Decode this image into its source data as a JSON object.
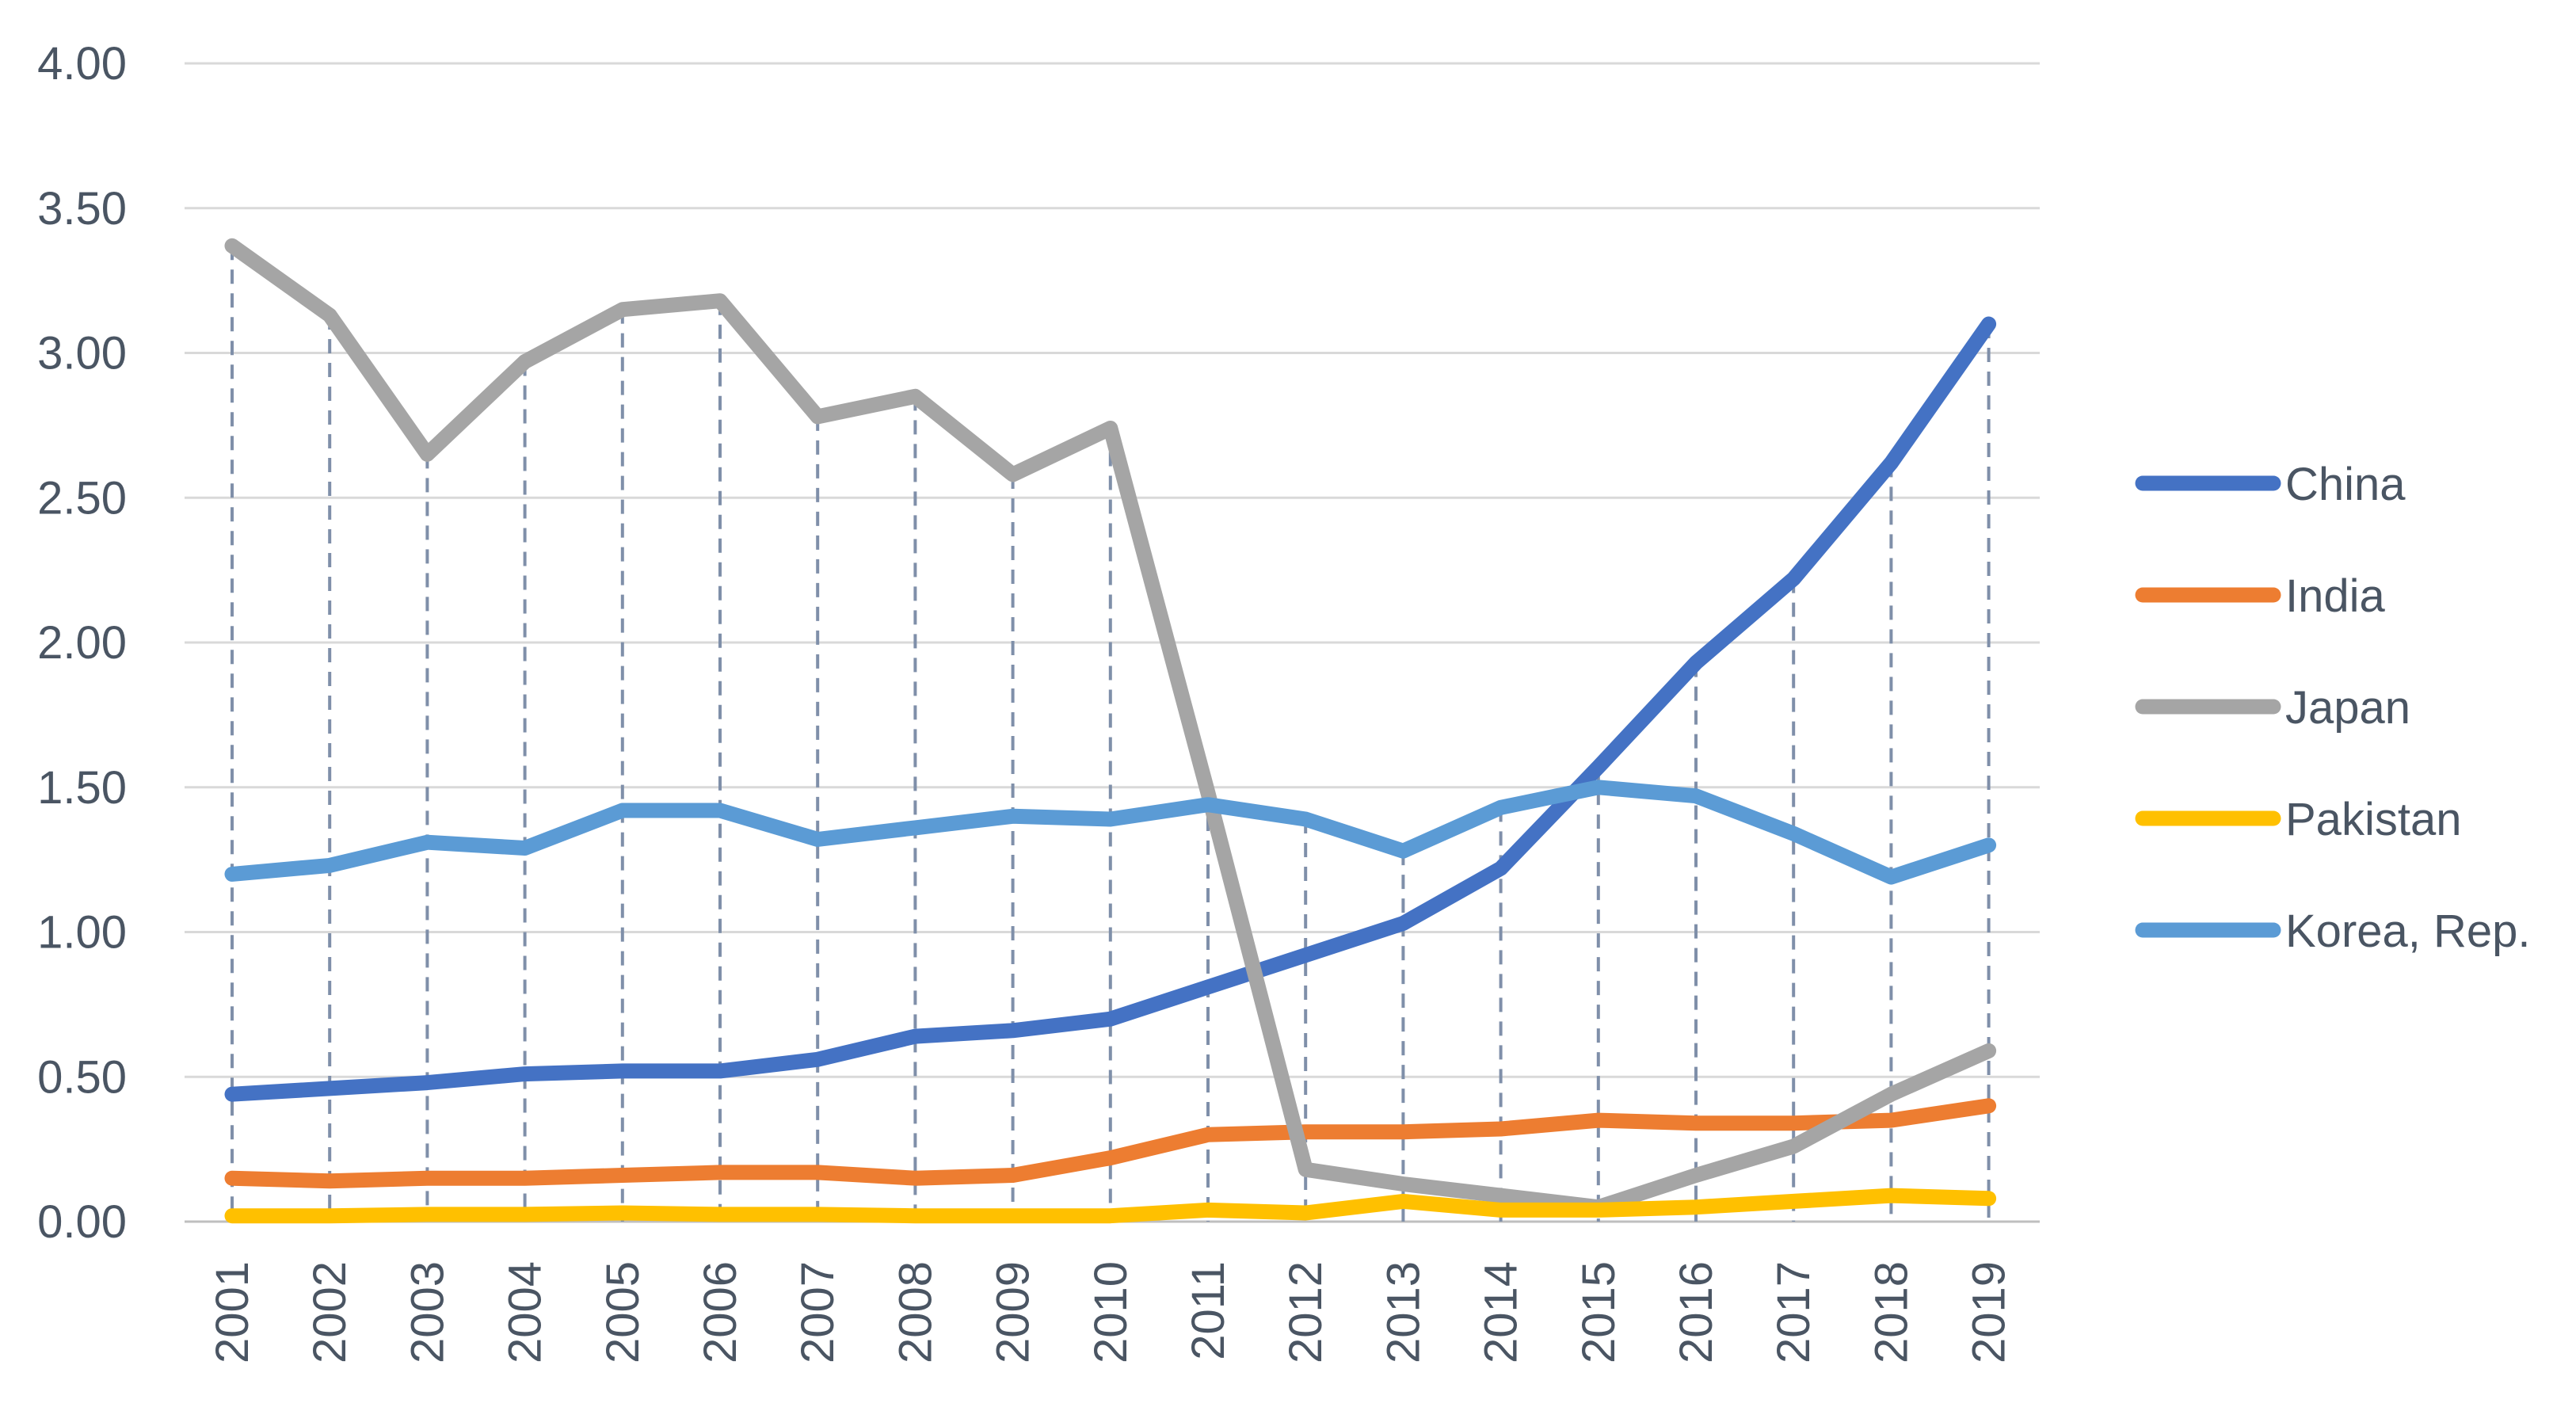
{
  "chart_data": {
    "type": "line",
    "title": "",
    "xlabel": "",
    "ylabel": "",
    "ylim": [
      0,
      4
    ],
    "y_ticks": [
      "0.00",
      "0.50",
      "1.00",
      "1.50",
      "2.00",
      "2.50",
      "3.00",
      "3.50",
      "4.00"
    ],
    "grid": true,
    "drop_lines": true,
    "legend_position": "right",
    "categories": [
      "2001",
      "2002",
      "2003",
      "2004",
      "2005",
      "2006",
      "2007",
      "2008",
      "2009",
      "2010",
      "2011",
      "2012",
      "2013",
      "2014",
      "2015",
      "2016",
      "2017",
      "2018",
      "2019"
    ],
    "series": [
      {
        "name": "China",
        "color": "#4472c4",
        "values": [
          0.44,
          0.46,
          0.48,
          0.51,
          0.52,
          0.52,
          0.56,
          0.64,
          0.66,
          0.7,
          0.81,
          0.92,
          1.03,
          1.22,
          1.57,
          1.93,
          2.22,
          2.62,
          3.1
        ]
      },
      {
        "name": "India",
        "color": "#ed7d31",
        "values": [
          0.15,
          0.14,
          0.15,
          0.15,
          0.16,
          0.17,
          0.17,
          0.15,
          0.16,
          0.22,
          0.3,
          0.31,
          0.31,
          0.32,
          0.35,
          0.34,
          0.34,
          0.35,
          0.4
        ]
      },
      {
        "name": "Japan",
        "color": "#a5a5a5",
        "values": [
          3.37,
          3.13,
          2.65,
          2.97,
          3.15,
          3.18,
          2.78,
          2.85,
          2.58,
          2.74,
          1.48,
          0.18,
          0.13,
          0.09,
          0.05,
          0.16,
          0.26,
          0.44,
          0.59
        ]
      },
      {
        "name": "Pakistan",
        "color": "#ffc000",
        "values": [
          0.02,
          0.02,
          0.025,
          0.025,
          0.03,
          0.025,
          0.025,
          0.02,
          0.02,
          0.02,
          0.04,
          0.03,
          0.07,
          0.04,
          0.04,
          0.05,
          0.07,
          0.09,
          0.08
        ]
      },
      {
        "name": "Korea, Rep.",
        "color": "#5b9bd5",
        "values": [
          1.2,
          1.23,
          1.31,
          1.29,
          1.42,
          1.42,
          1.32,
          1.36,
          1.4,
          1.39,
          1.44,
          1.39,
          1.28,
          1.43,
          1.5,
          1.47,
          1.34,
          1.19,
          1.3
        ]
      }
    ]
  }
}
